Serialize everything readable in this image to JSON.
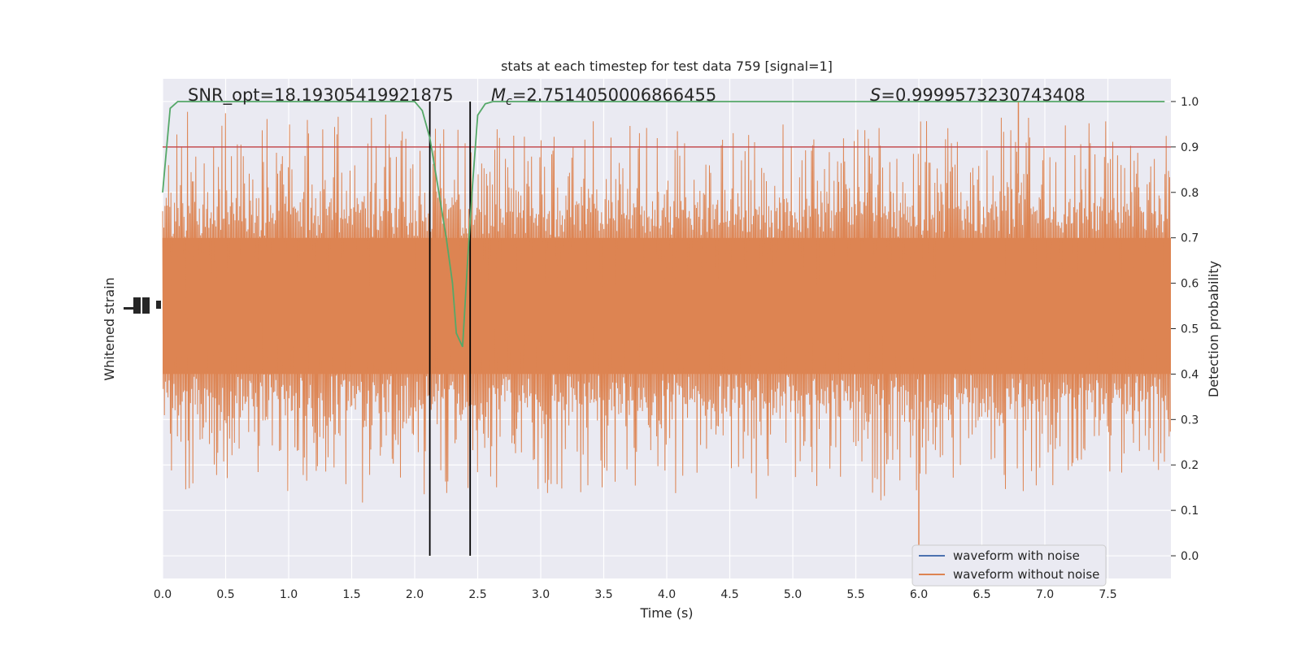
{
  "chart_data": {
    "type": "line",
    "title": "stats at each timestep for test data 759 [signal=1]",
    "xlabel": "Time (s)",
    "ylabel_left": "Whitened strain",
    "ylabel_right": "Detection probability",
    "xlim": [
      0.0,
      8.0
    ],
    "ylim_right": [
      -0.05,
      1.05
    ],
    "x_ticks": [
      "0.0",
      "0.5",
      "1.0",
      "1.5",
      "2.0",
      "2.5",
      "3.0",
      "3.5",
      "4.0",
      "4.5",
      "5.0",
      "5.5",
      "6.0",
      "6.5",
      "7.0",
      "7.5"
    ],
    "y_ticks_right": [
      "0.0",
      "0.1",
      "0.2",
      "0.3",
      "0.4",
      "0.5",
      "0.6",
      "0.7",
      "0.8",
      "0.9",
      "1.0"
    ],
    "grid": true,
    "legend_position": "lower-right",
    "annotations": {
      "snr": "SNR_opt=18.19305419921875",
      "mc_symbol": "M",
      "mc_sub": "c",
      "mc_value": "=2.7514050006866455",
      "s_symbol": "S",
      "s_value": "=0.9999573230743408"
    },
    "threshold": 0.9,
    "vertical_lines_x": [
      2.12,
      2.44
    ],
    "series": [
      {
        "name": "waveform with noise",
        "color": "#4c72b0"
      },
      {
        "name": "waveform without noise",
        "color": "#dd8452",
        "amplitude_band": [
          0.4,
          0.7
        ],
        "peak_extremes": [
          0.0,
          1.0
        ]
      },
      {
        "color": "#55a868",
        "x": [
          0.0,
          0.06,
          0.12,
          0.2,
          0.5,
          1.0,
          1.5,
          1.8,
          2.0,
          2.06,
          2.12,
          2.18,
          2.25,
          2.3,
          2.33,
          2.38,
          2.42,
          2.46,
          2.5,
          2.56,
          2.62,
          2.75,
          3.0,
          4.0,
          5.0,
          6.0,
          7.0,
          7.95
        ],
        "y": [
          0.8,
          0.985,
          1.0,
          1.0,
          1.0,
          1.0,
          1.0,
          1.0,
          1.0,
          0.98,
          0.92,
          0.82,
          0.7,
          0.6,
          0.49,
          0.46,
          0.65,
          0.82,
          0.97,
          0.995,
          1.0,
          1.0,
          1.0,
          1.0,
          1.0,
          1.0,
          1.0,
          1.0
        ]
      },
      {
        "color": "#c44e52",
        "x": [
          0.0,
          8.0
        ],
        "y": [
          0.9,
          0.9
        ]
      }
    ]
  }
}
